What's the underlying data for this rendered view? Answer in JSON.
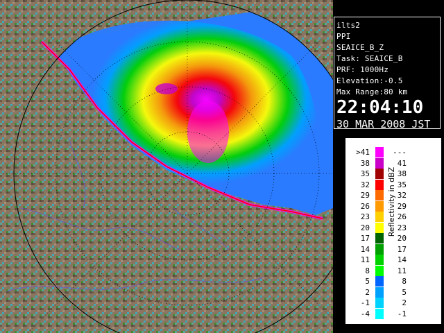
{
  "info": {
    "site": "ilts2",
    "scan_type": "PPI",
    "product": "SEAICE_B_Z",
    "task": "Task: SEAICE_B",
    "prf": "PRF: 1000Hz",
    "elevation": "Elevation:-0.5",
    "max_range": "Max Range:80 km",
    "time": "22:04:10",
    "date": "30 MAR 2008 JST"
  },
  "legend": {
    "unit_label": "Reflectivity in dBZ",
    "rows": [
      {
        "lo": ">41",
        "hi": "---",
        "color": "#ff00ff"
      },
      {
        "lo": "38",
        "hi": "41",
        "color": "#c800c8"
      },
      {
        "lo": "35",
        "hi": "38",
        "color": "#a00000"
      },
      {
        "lo": "32",
        "hi": "35",
        "color": "#ff0000"
      },
      {
        "lo": "29",
        "hi": "32",
        "color": "#ff6a00"
      },
      {
        "lo": "26",
        "hi": "29",
        "color": "#ff9a00"
      },
      {
        "lo": "23",
        "hi": "26",
        "color": "#ffd000"
      },
      {
        "lo": "20",
        "hi": "23",
        "color": "#ffff00"
      },
      {
        "lo": "17",
        "hi": "20",
        "color": "#006400"
      },
      {
        "lo": "14",
        "hi": "17",
        "color": "#00a000"
      },
      {
        "lo": "11",
        "hi": "14",
        "color": "#00d200"
      },
      {
        "lo": "8",
        "hi": "11",
        "color": "#00ff00"
      },
      {
        "lo": "5",
        "hi": "8",
        "color": "#0064ff"
      },
      {
        "lo": "2",
        "hi": "5",
        "color": "#00a0ff"
      },
      {
        "lo": "-1",
        "hi": "2",
        "color": "#00d2ff"
      },
      {
        "lo": "-4",
        "hi": "-1",
        "color": "#00ffff"
      }
    ]
  }
}
